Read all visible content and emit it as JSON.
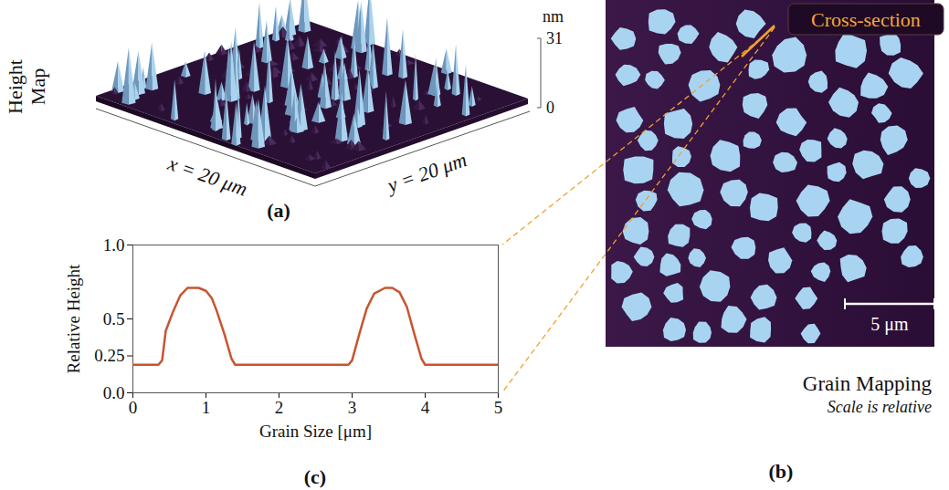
{
  "chart_data": {
    "type": "line",
    "panel": "(c)",
    "x_label": "Grain Size [μm]",
    "y_label": "Relative Height",
    "x": [
      0,
      0.35,
      0.4,
      0.45,
      0.55,
      0.65,
      0.75,
      0.9,
      1.0,
      1.08,
      1.15,
      1.25,
      1.35,
      1.4,
      2.95,
      3.0,
      3.1,
      3.2,
      3.3,
      3.45,
      3.55,
      3.65,
      3.75,
      3.85,
      3.95,
      4.0,
      5.0
    ],
    "values": [
      0.19,
      0.19,
      0.22,
      0.42,
      0.55,
      0.66,
      0.71,
      0.71,
      0.69,
      0.64,
      0.55,
      0.4,
      0.23,
      0.19,
      0.19,
      0.22,
      0.4,
      0.57,
      0.67,
      0.71,
      0.71,
      0.68,
      0.58,
      0.4,
      0.23,
      0.19,
      0.19
    ],
    "color": "#c8552f",
    "xlim": [
      0,
      5
    ],
    "xticks": [
      0,
      1,
      2,
      3,
      4,
      5
    ],
    "ylim": [
      0,
      1
    ],
    "yticks": [
      {
        "value": 0,
        "label": "0.0"
      },
      0.25,
      0.5,
      {
        "value": 1,
        "label": "1.0"
      }
    ],
    "grid": false
  },
  "panel_a": {
    "label": "(a)",
    "title": "Height Map",
    "x_label": "x = 20 μm",
    "y_label": "y = 20 μm",
    "z_unit": "nm",
    "z_ticks": [
      0,
      31
    ]
  },
  "panel_b": {
    "label": "(b)",
    "title": "Grain Mapping",
    "subtitle": "Scale is relative",
    "annotation": "Cross-section",
    "scale_bar": "5 μm"
  }
}
